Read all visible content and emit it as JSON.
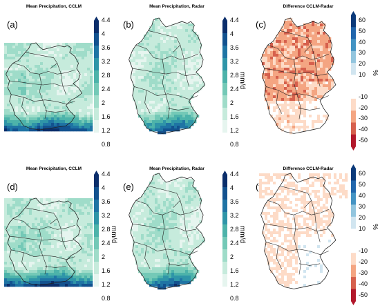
{
  "colors": {
    "precip_ramp": [
      "#ffffff",
      "#e6f5ef",
      "#c6ebdc",
      "#9fdcc9",
      "#74c9b7",
      "#4db3aa",
      "#2f95a8",
      "#1f74a4",
      "#13528f",
      "#0b2e6b"
    ],
    "diff_ramp": [
      "#b2182b",
      "#d6604d",
      "#f4a582",
      "#fddbc7",
      "#ffffff",
      "#ffffff",
      "#d1e5f0",
      "#92c5de",
      "#4393c3",
      "#2166ac",
      "#0b3a7a"
    ],
    "border": "#222222"
  },
  "chart_data": [
    {
      "type": "heatmap",
      "panel": "(a)",
      "title": "Mean Precipitation, CCLM",
      "colorbar": {
        "unit": "",
        "ticks": [
          "4.4",
          "4",
          "3.6",
          "3.2",
          "2.8",
          "2.4",
          "2",
          "1.6",
          "1.2",
          "0.8"
        ]
      }
    },
    {
      "type": "heatmap",
      "panel": "(b)",
      "title": "Mean Precipitation, Radar",
      "colorbar": {
        "unit": "mm/d",
        "ticks": [
          "4.4",
          "4",
          "3.6",
          "3.2",
          "2.8",
          "2.4",
          "2",
          "1.6",
          "1.2",
          "0.8"
        ]
      }
    },
    {
      "type": "heatmap",
      "panel": "(c)",
      "title": "Difference CCLM-Radar",
      "colorbar": {
        "unit": "%",
        "ticks": [
          "60",
          "50",
          "40",
          "30",
          "20",
          "10",
          "-10",
          "-20",
          "-30",
          "-40",
          "-50"
        ]
      }
    },
    {
      "type": "heatmap",
      "panel": "(d)",
      "title": "Mean Precipitation, CCLM",
      "colorbar": {
        "unit": "mm/d",
        "ticks": [
          "4.4",
          "4",
          "3.6",
          "3.2",
          "2.8",
          "2.4",
          "2",
          "1.6",
          "1.2",
          "0.8"
        ]
      }
    },
    {
      "type": "heatmap",
      "panel": "(e)",
      "title": "Mean Precipitation, Radar",
      "colorbar": {
        "unit": "mm/d",
        "ticks": [
          "4.4",
          "4",
          "3.6",
          "3.2",
          "2.8",
          "2.4",
          "2",
          "1.6",
          "1.2",
          "0.8"
        ]
      }
    },
    {
      "type": "heatmap",
      "panel": "(f)",
      "title": "Difference CCLM-Radar",
      "colorbar": {
        "unit": "%",
        "ticks": [
          "60",
          "50",
          "40",
          "30",
          "20",
          "10",
          "-10",
          "-20",
          "-30",
          "-40",
          "-50"
        ]
      }
    }
  ]
}
